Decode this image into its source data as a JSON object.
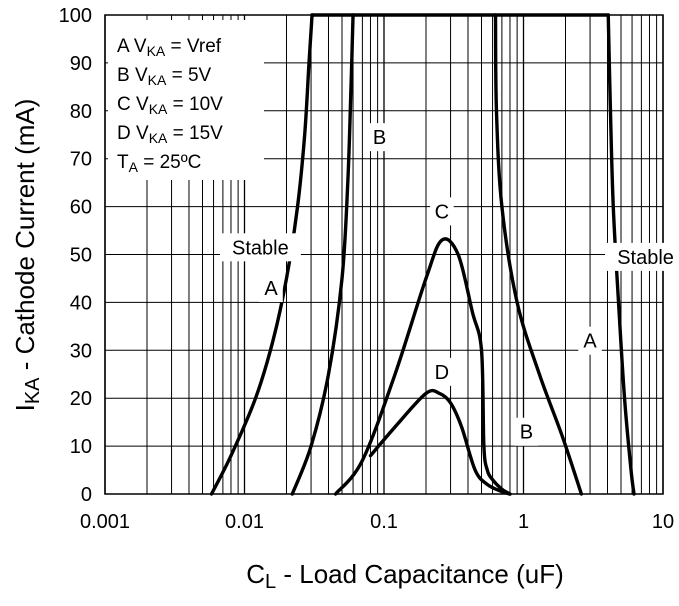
{
  "chart_data": {
    "type": "line",
    "title": "",
    "xscale": "log",
    "xlim": [
      0.001,
      10
    ],
    "ylim": [
      0,
      100
    ],
    "xlabel": {
      "main": "C",
      "sub": "L",
      "rest": " - Load Capacitance (uF)"
    },
    "ylabel": {
      "main": "I",
      "sub": "KA",
      "rest": " - Cathode Current (mA)"
    },
    "x_ticks": [
      {
        "value": 0.001,
        "label": "0.001"
      },
      {
        "value": 0.01,
        "label": "0.01"
      },
      {
        "value": 0.1,
        "label": "0.1"
      },
      {
        "value": 1,
        "label": "1"
      },
      {
        "value": 10,
        "label": "10"
      }
    ],
    "y_ticks": [
      {
        "value": 0,
        "label": "0"
      },
      {
        "value": 10,
        "label": "10"
      },
      {
        "value": 20,
        "label": "20"
      },
      {
        "value": 30,
        "label": "30"
      },
      {
        "value": 40,
        "label": "40"
      },
      {
        "value": 50,
        "label": "50"
      },
      {
        "value": 60,
        "label": "60"
      },
      {
        "value": 70,
        "label": "70"
      },
      {
        "value": 80,
        "label": "80"
      },
      {
        "value": 90,
        "label": "90"
      },
      {
        "value": 100,
        "label": "100"
      }
    ],
    "legend": [
      {
        "key": "A",
        "var_main": "V",
        "var_sub": "KA",
        "rest": " = Vref"
      },
      {
        "key": "B",
        "var_main": "V",
        "var_sub": "KA",
        "rest": " = 5V"
      },
      {
        "key": "C",
        "var_main": "V",
        "var_sub": "KA",
        "rest": " = 10V"
      },
      {
        "key": "D",
        "var_main": "V",
        "var_sub": "KA",
        "rest": " = 15V"
      },
      {
        "key": "",
        "var_main": "T",
        "var_sub": "A",
        "rest": " = 25ºC"
      }
    ],
    "series": [
      {
        "name": "A-left",
        "x": [
          0.0058,
          0.008,
          0.012,
          0.016,
          0.02,
          0.024,
          0.027,
          0.029,
          0.0305
        ],
        "y": [
          0,
          8,
          20,
          32,
          45,
          60,
          75,
          90,
          100
        ]
      },
      {
        "name": "A-top",
        "x": [
          0.0305,
          4.05
        ],
        "y": [
          100,
          100
        ]
      },
      {
        "name": "A-right",
        "x": [
          4.05,
          4.2,
          4.4,
          4.8,
          5.3,
          5.9,
          6.2
        ],
        "y": [
          100,
          80,
          60,
          40,
          20,
          5,
          0
        ]
      },
      {
        "name": "B-left",
        "x": [
          0.022,
          0.03,
          0.04,
          0.05,
          0.055,
          0.058,
          0.06
        ],
        "y": [
          0,
          10,
          25,
          45,
          65,
          85,
          100
        ]
      },
      {
        "name": "B-right",
        "x": [
          0.63,
          0.64,
          0.7,
          0.9,
          1.3,
          1.9,
          2.6
        ],
        "y": [
          100,
          80,
          60,
          40,
          25,
          12,
          0
        ]
      },
      {
        "name": "C",
        "x": [
          0.045,
          0.07,
          0.12,
          0.2,
          0.26,
          0.34,
          0.43,
          0.5,
          0.52,
          0.55,
          0.6,
          0.7,
          0.8
        ],
        "y": [
          0,
          7,
          25,
          45,
          53,
          50,
          38,
          30,
          10,
          5,
          3,
          1,
          0
        ]
      },
      {
        "name": "D",
        "x": [
          0.08,
          0.12,
          0.2,
          0.25,
          0.3,
          0.36,
          0.45,
          0.55,
          0.7,
          0.8
        ],
        "y": [
          8,
          14,
          21,
          21,
          19,
          14,
          5,
          2,
          0.5,
          0
        ]
      }
    ],
    "annotations": [
      {
        "text": "Stable",
        "x": 0.013,
        "y": 51.5
      },
      {
        "text": "Stable",
        "x": 7.5,
        "y": 49.5
      },
      {
        "text": "A",
        "x": 0.0155,
        "y": 43
      },
      {
        "text": "B",
        "x": 0.093,
        "y": 74.5
      },
      {
        "text": "C",
        "x": 0.26,
        "y": 59
      },
      {
        "text": "D",
        "x": 0.26,
        "y": 25.5
      },
      {
        "text": "B",
        "x": 1.05,
        "y": 13
      },
      {
        "text": "A",
        "x": 3.0,
        "y": 32
      }
    ]
  }
}
